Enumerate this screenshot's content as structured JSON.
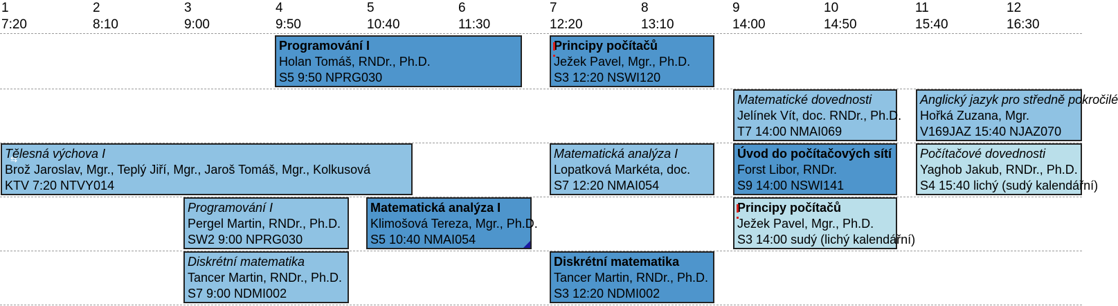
{
  "header": {
    "slots": [
      {
        "num": "1",
        "time": "7:20"
      },
      {
        "num": "2",
        "time": "8:10"
      },
      {
        "num": "3",
        "time": "9:00"
      },
      {
        "num": "4",
        "time": "9:50"
      },
      {
        "num": "5",
        "time": "10:40"
      },
      {
        "num": "6",
        "time": "11:30"
      },
      {
        "num": "7",
        "time": "12:20"
      },
      {
        "num": "8",
        "time": "13:10"
      },
      {
        "num": "9",
        "time": "14:00"
      },
      {
        "num": "10",
        "time": "14:50"
      },
      {
        "num": "11",
        "time": "15:40"
      },
      {
        "num": "12",
        "time": "16:30"
      }
    ]
  },
  "events": [
    {
      "title": "Programování I",
      "teacher": "Holan Tomáš, RNDr., Ph.D.",
      "info": "S5 9:50 NPRG030",
      "color": "dark",
      "italic": false
    },
    {
      "title": "Principy počítačů",
      "teacher": "Ježek Pavel, Mgr., Ph.D.",
      "info": "S3 12:20 NSWI120",
      "color": "dark",
      "italic": false
    },
    {
      "title": "Matematické dovednosti",
      "teacher": "Jelínek Vít, doc. RNDr., Ph.D.",
      "info": "T7 14:00 NMAI069",
      "color": "mid",
      "italic": true
    },
    {
      "title": "Anglický jazyk pro středně pokročilé",
      "teacher": "Hořká Zuzana, Mgr.",
      "info": "V169JAZ 15:40 NJAZ070",
      "color": "mid",
      "italic": true
    },
    {
      "title": "Tělesná výchova I",
      "teacher": "Brož Jaroslav, Mgr., Teplý Jiří, Mgr., Jaroš Tomáš, Mgr., Kolkusová",
      "info": "KTV 7:20 NTVY014",
      "color": "mid",
      "italic": true
    },
    {
      "title": "Matematická analýza I",
      "teacher": "Lopatková Markéta, doc.",
      "info": "S7 12:20 NMAI054",
      "color": "mid",
      "italic": true
    },
    {
      "title": "Úvod do počítačových sítí",
      "teacher": "Forst Libor, RNDr.",
      "info": "S9 14:00 NSWI141",
      "color": "dark",
      "italic": false
    },
    {
      "title": "Počítačové dovednosti",
      "teacher": "Yaghob Jakub, RNDr., Ph.D.",
      "info": "S4 15:40 lichý (sudý kalendářní)",
      "color": "light",
      "italic": true
    },
    {
      "title": "Programování I",
      "teacher": "Pergel Martin, RNDr., Ph.D.",
      "info": "SW2 9:00 NPRG030",
      "color": "mid",
      "italic": true
    },
    {
      "title": "Matematická analýza I",
      "teacher": "Klimošová Tereza, Mgr., Ph.D.",
      "info": "S5 10:40 NMAI054",
      "color": "dark",
      "italic": false
    },
    {
      "title": "Principy počítačů",
      "teacher": "Ježek Pavel, Mgr., Ph.D.",
      "info": "S3 14:00 sudý (lichý kalendářní)",
      "color": "light",
      "italic": false
    },
    {
      "title": "Diskrétní matematika",
      "teacher": "Tancer Martin, RNDr., Ph.D.",
      "info": "S7 9:00 NDMI002",
      "color": "mid",
      "italic": true
    },
    {
      "title": "Diskrétní matematika",
      "teacher": "Tancer Martin, RNDr., Ph.D.",
      "info": "S3 12:20 NDMI002",
      "color": "dark",
      "italic": false
    }
  ]
}
